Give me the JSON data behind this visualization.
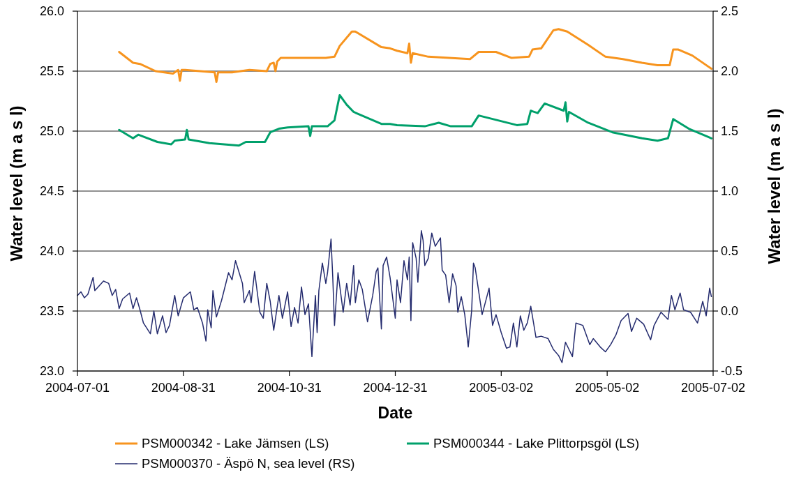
{
  "chart_data": {
    "type": "line",
    "xlabel": "Date",
    "ylabel": "Water level (m a s l)",
    "y2label": "Water level (m a s l)",
    "xlim": [
      "2004-07-01",
      "2005-07-02"
    ],
    "xticks": [
      "2004-07-01",
      "2004-08-31",
      "2004-10-31",
      "2004-12-31",
      "2005-03-02",
      "2005-05-02",
      "2005-07-02"
    ],
    "ylim": [
      23,
      26
    ],
    "yticks": [
      {
        "value": 23,
        "label": "23.0"
      },
      23.5,
      {
        "value": 24,
        "label": "24.0"
      },
      24.5,
      {
        "value": 25,
        "label": "25.0"
      },
      25.5,
      {
        "value": 26,
        "label": "26.0"
      }
    ],
    "y2lim": [
      -0.5,
      2.5
    ],
    "y2ticks": [
      -0.5,
      {
        "value": 0,
        "label": "0.0"
      },
      0.5,
      {
        "value": 1,
        "label": "1.0"
      },
      1.5,
      {
        "value": 2,
        "label": "2.0"
      },
      2.5
    ],
    "grid": "y",
    "legend": "bottom",
    "marker": "none",
    "line_style": "solid",
    "series": [
      {
        "name": "PSM000342 - Lake Jämsen (LS)",
        "color": "#f7941e",
        "x": [
          "2004-07-25",
          "2004-08-02",
          "2004-08-06",
          "2004-08-15",
          "2004-08-25",
          "2004-08-28",
          "2004-08-29",
          "2004-08-30",
          "2004-09-01",
          "2004-09-18",
          "2004-09-19",
          "2004-09-20",
          "2004-09-28",
          "2004-10-08",
          "2004-10-18",
          "2004-10-20",
          "2004-10-22",
          "2004-10-23",
          "2004-10-24",
          "2004-10-26",
          "2004-11-21",
          "2004-11-26",
          "2004-11-29",
          "2004-12-06",
          "2004-12-08",
          "2004-12-23",
          "2004-12-28",
          "2005-01-01",
          "2005-01-07",
          "2005-01-08",
          "2005-01-09",
          "2005-01-10",
          "2005-01-19",
          "2005-02-12",
          "2005-02-17",
          "2005-02-27",
          "2005-03-08",
          "2005-03-18",
          "2005-03-20",
          "2005-03-25",
          "2005-04-01",
          "2005-04-04",
          "2005-04-09",
          "2005-04-21",
          "2005-05-01",
          "2005-05-11",
          "2005-05-22",
          "2005-05-31",
          "2005-06-07",
          "2005-06-09",
          "2005-06-12",
          "2005-06-20",
          "2005-07-01"
        ],
        "values": [
          25.66,
          25.57,
          25.56,
          25.5,
          25.48,
          25.51,
          25.42,
          25.51,
          25.51,
          25.49,
          25.41,
          25.49,
          25.49,
          25.51,
          25.5,
          25.56,
          25.57,
          25.5,
          25.58,
          25.61,
          25.61,
          25.62,
          25.71,
          25.83,
          25.83,
          25.7,
          25.69,
          25.67,
          25.65,
          25.73,
          25.57,
          25.65,
          25.62,
          25.6,
          25.66,
          25.66,
          25.61,
          25.62,
          25.68,
          25.69,
          25.84,
          25.85,
          25.83,
          25.72,
          25.62,
          25.6,
          25.57,
          25.55,
          25.55,
          25.68,
          25.68,
          25.63,
          25.52
        ]
      },
      {
        "name": "PSM000344 - Lake Plittorpsgöl (LS)",
        "color": "#00a06b",
        "x": [
          "2004-07-25",
          "2004-08-02",
          "2004-08-05",
          "2004-08-16",
          "2004-08-24",
          "2004-08-26",
          "2004-09-01",
          "2004-09-02",
          "2004-09-03",
          "2004-09-15",
          "2004-10-02",
          "2004-10-06",
          "2004-10-17",
          "2004-10-20",
          "2004-10-25",
          "2004-10-30",
          "2004-11-11",
          "2004-11-12",
          "2004-11-13",
          "2004-11-22",
          "2004-11-26",
          "2004-11-29",
          "2004-12-03",
          "2004-12-07",
          "2004-12-23",
          "2004-12-28",
          "2005-01-01",
          "2005-01-17",
          "2005-01-25",
          "2005-02-01",
          "2005-02-13",
          "2005-02-17",
          "2005-03-11",
          "2005-03-17",
          "2005-03-19",
          "2005-03-23",
          "2005-03-27",
          "2005-04-07",
          "2005-04-08",
          "2005-04-09",
          "2005-04-10",
          "2005-04-21",
          "2005-05-05",
          "2005-05-22",
          "2005-05-31",
          "2005-06-06",
          "2005-06-09",
          "2005-06-18",
          "2005-07-01"
        ],
        "values": [
          25.01,
          24.94,
          24.97,
          24.91,
          24.89,
          24.92,
          24.93,
          25.01,
          24.93,
          24.9,
          24.88,
          24.91,
          24.91,
          24.99,
          25.02,
          25.03,
          25.04,
          24.96,
          25.04,
          25.04,
          25.09,
          25.3,
          25.22,
          25.16,
          25.06,
          25.06,
          25.05,
          25.04,
          25.07,
          25.04,
          25.04,
          25.13,
          25.05,
          25.06,
          25.17,
          25.15,
          25.23,
          25.17,
          25.24,
          25.08,
          25.16,
          25.07,
          24.99,
          24.94,
          24.92,
          24.94,
          25.1,
          25.02,
          24.94
        ]
      },
      {
        "name": "PSM000370 - Äspö N, sea level (RS)",
        "color": "#242b6e",
        "axis": "y2",
        "x": [
          "2004-07-01",
          "2004-07-03",
          "2004-07-05",
          "2004-07-07",
          "2004-07-10",
          "2004-07-11",
          "2004-07-16",
          "2004-07-19",
          "2004-07-21",
          "2004-07-23",
          "2004-07-25",
          "2004-07-27",
          "2004-07-31",
          "2004-08-02",
          "2004-08-04",
          "2004-08-06",
          "2004-08-08",
          "2004-08-12",
          "2004-08-14",
          "2004-08-16",
          "2004-08-19",
          "2004-08-21",
          "2004-08-23",
          "2004-08-26",
          "2004-08-28",
          "2004-08-31",
          "2004-09-04",
          "2004-09-06",
          "2004-09-08",
          "2004-09-11",
          "2004-09-13",
          "2004-09-14",
          "2004-09-16",
          "2004-09-17",
          "2004-09-19",
          "2004-09-22",
          "2004-09-26",
          "2004-09-28",
          "2004-09-30",
          "2004-10-04",
          "2004-10-05",
          "2004-10-08",
          "2004-10-09",
          "2004-10-11",
          "2004-10-14",
          "2004-10-16",
          "2004-10-18",
          "2004-10-20",
          "2004-10-22",
          "2004-10-25",
          "2004-10-27",
          "2004-10-30",
          "2004-11-01",
          "2004-11-03",
          "2004-11-05",
          "2004-11-07",
          "2004-11-09",
          "2004-11-11",
          "2004-11-13",
          "2004-11-15",
          "2004-11-16",
          "2004-11-17",
          "2004-11-19",
          "2004-11-21",
          "2004-11-22",
          "2004-11-24",
          "2004-11-25",
          "2004-11-26",
          "2004-11-28",
          "2004-12-01",
          "2004-12-03",
          "2004-12-05",
          "2004-12-07",
          "2004-12-08",
          "2004-12-10",
          "2004-12-12",
          "2004-12-15",
          "2004-12-18",
          "2004-12-20",
          "2004-12-21",
          "2004-12-23",
          "2004-12-24",
          "2004-12-26",
          "2004-12-28",
          "2004-12-31",
          "2005-01-01",
          "2005-01-03",
          "2005-01-05",
          "2005-01-07",
          "2005-01-08",
          "2005-01-09",
          "2005-01-10",
          "2005-01-12",
          "2005-01-13",
          "2005-01-15",
          "2005-01-16",
          "2005-01-17",
          "2005-01-19",
          "2005-01-21",
          "2005-01-23",
          "2005-01-26",
          "2005-01-27",
          "2005-01-29",
          "2005-01-31",
          "2005-02-02",
          "2005-02-04",
          "2005-02-05",
          "2005-02-07",
          "2005-02-09",
          "2005-02-11",
          "2005-02-13",
          "2005-02-14",
          "2005-02-15",
          "2005-02-19",
          "2005-02-23",
          "2005-02-25",
          "2005-02-27",
          "2005-03-02",
          "2005-03-05",
          "2005-03-07",
          "2005-03-09",
          "2005-03-11",
          "2005-03-13",
          "2005-03-15",
          "2005-03-17",
          "2005-03-19",
          "2005-03-22",
          "2005-03-25",
          "2005-03-29",
          "2005-04-01",
          "2005-04-04",
          "2005-04-06",
          "2005-04-08",
          "2005-04-12",
          "2005-04-14",
          "2005-04-18",
          "2005-04-22",
          "2005-04-24",
          "2005-04-28",
          "2005-05-01",
          "2005-05-04",
          "2005-05-07",
          "2005-05-10",
          "2005-05-14",
          "2005-05-16",
          "2005-05-19",
          "2005-05-23",
          "2005-05-27",
          "2005-05-29",
          "2005-06-02",
          "2005-06-06",
          "2005-06-08",
          "2005-06-10",
          "2005-06-13",
          "2005-06-15",
          "2005-06-19",
          "2005-06-23",
          "2005-06-26",
          "2005-06-28",
          "2005-06-30",
          "2005-07-01"
        ],
        "values": [
          0.13,
          0.16,
          0.11,
          0.14,
          0.28,
          0.17,
          0.25,
          0.23,
          0.13,
          0.18,
          0.02,
          0.1,
          0.15,
          0.02,
          0.11,
          0.01,
          -0.1,
          -0.19,
          0.0,
          -0.19,
          -0.04,
          -0.18,
          -0.12,
          0.13,
          -0.04,
          0.11,
          0.16,
          0.01,
          0.03,
          -0.1,
          -0.25,
          0.01,
          -0.14,
          0.17,
          -0.05,
          0.09,
          0.32,
          0.26,
          0.42,
          0.23,
          0.07,
          0.17,
          0.07,
          0.33,
          -0.01,
          -0.06,
          0.23,
          0.08,
          -0.16,
          0.13,
          -0.06,
          0.16,
          -0.13,
          0.03,
          -0.1,
          0.2,
          -0.03,
          0.06,
          -0.38,
          0.13,
          -0.18,
          0.17,
          0.4,
          0.23,
          0.32,
          0.6,
          0.28,
          -0.12,
          0.32,
          -0.01,
          0.23,
          0.05,
          0.38,
          0.07,
          0.26,
          0.18,
          -0.09,
          0.13,
          0.33,
          0.36,
          -0.15,
          0.38,
          0.45,
          0.28,
          -0.06,
          0.26,
          0.07,
          0.42,
          0.26,
          0.45,
          -0.08,
          0.57,
          0.44,
          0.24,
          0.67,
          0.59,
          0.38,
          0.44,
          0.65,
          0.54,
          0.61,
          0.34,
          0.3,
          0.07,
          0.31,
          0.21,
          -0.01,
          0.12,
          -0.03,
          -0.3,
          0.01,
          0.4,
          0.36,
          -0.03,
          0.19,
          -0.12,
          -0.03,
          -0.18,
          -0.31,
          -0.3,
          -0.1,
          -0.3,
          -0.04,
          -0.16,
          -0.1,
          0.04,
          -0.22,
          -0.21,
          -0.23,
          -0.32,
          -0.37,
          -0.43,
          -0.26,
          -0.38,
          -0.1,
          -0.12,
          -0.28,
          -0.23,
          -0.3,
          -0.34,
          -0.28,
          -0.2,
          -0.08,
          -0.02,
          -0.17,
          -0.06,
          -0.11,
          -0.24,
          -0.12,
          -0.01,
          -0.07,
          0.13,
          0.01,
          0.15,
          0.01,
          -0.01,
          -0.1,
          0.08,
          -0.04,
          0.19,
          0.12
        ]
      }
    ]
  }
}
